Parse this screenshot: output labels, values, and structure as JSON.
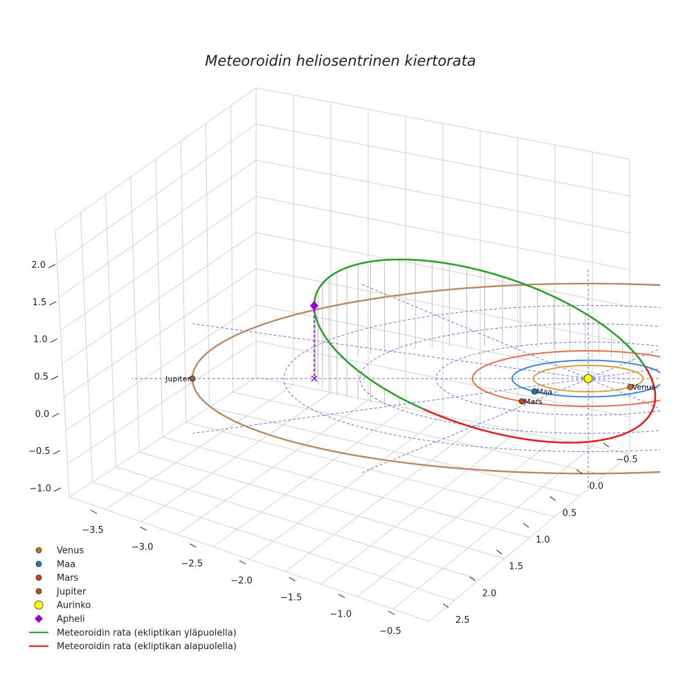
{
  "chart_data": {
    "type": "line",
    "projection": "3d",
    "title": "Meteoroidin heliosentrinen kiertorata",
    "xlabel": "",
    "ylabel": "",
    "zlabel": "",
    "x_ticks": [
      "−3.5",
      "−3.0",
      "−2.5",
      "−2.0",
      "−1.5",
      "−1.0",
      "−0.5"
    ],
    "y_ticks": [
      "−0.5",
      "0.0",
      "0.5",
      "1.0",
      "1.5",
      "2.0",
      "2.5"
    ],
    "z_ticks": [
      "−1.0",
      "−0.5",
      "0.0",
      "0.5",
      "1.0",
      "1.5",
      "2.0"
    ],
    "xlim": [
      -3.7,
      0.1
    ],
    "ylim": [
      -0.8,
      2.8
    ],
    "zlim": [
      -1.2,
      2.3
    ],
    "grid": true,
    "ecliptic_grid": {
      "color": "#5555dd",
      "circle_radii_au": [
        1.0,
        2.0,
        3.0,
        4.0
      ],
      "style": "dashed"
    },
    "planets": [
      {
        "name": "Venus",
        "label": "Venus",
        "orbit_radius_au": 0.72,
        "orbit_color": "#d4a040",
        "marker_color": "#c87020",
        "position_angle_deg": -40
      },
      {
        "name": "Maa",
        "label": "Maa",
        "orbit_radius_au": 1.0,
        "orbit_color": "#3a88d6",
        "marker_color": "#1f77b4",
        "position_angle_deg": 225
      },
      {
        "name": "Mars",
        "label": "Mars",
        "orbit_radius_au": 1.52,
        "orbit_color": "#e07048",
        "marker_color": "#c84414",
        "position_angle_deg": 235
      },
      {
        "name": "Jupiter",
        "label": "Jupiter",
        "orbit_radius_au": 5.2,
        "orbit_color": "#b88868",
        "marker_color": "#a05a2c",
        "position_angle_deg": 180
      }
    ],
    "sun": {
      "name": "Aurinko",
      "color": "#ffff00"
    },
    "aphelion": {
      "name": "Apheli",
      "x": -3.4,
      "y": 0.6,
      "z": 1.5,
      "color": "#9400d3"
    },
    "meteoroid_orbit": {
      "perihelion_au": 0.88,
      "aphelion_au": 3.6,
      "inclination_deg": 24,
      "above_color": "#2ca02c",
      "below_color": "#e02020"
    },
    "legend": {
      "placement": "bottom-left",
      "entries": [
        {
          "label": "Venus",
          "marker": "circle",
          "color": "#c87020"
        },
        {
          "label": "Maa",
          "marker": "circle",
          "color": "#1f77b4"
        },
        {
          "label": "Mars",
          "marker": "circle",
          "color": "#c84414"
        },
        {
          "label": "Jupiter",
          "marker": "circle",
          "color": "#a05a2c"
        },
        {
          "label": "Aurinko",
          "marker": "circle-large",
          "color": "#ffff00"
        },
        {
          "label": "Apheli",
          "marker": "diamond",
          "color": "#9400d3"
        },
        {
          "label": "Meteoroidin rata (ekliptikan yläpuolella)",
          "marker": "line",
          "color": "#2ca02c"
        },
        {
          "label": "Meteoroidin rata (ekliptikan alapuolella)",
          "marker": "line",
          "color": "#e02020"
        }
      ]
    }
  }
}
